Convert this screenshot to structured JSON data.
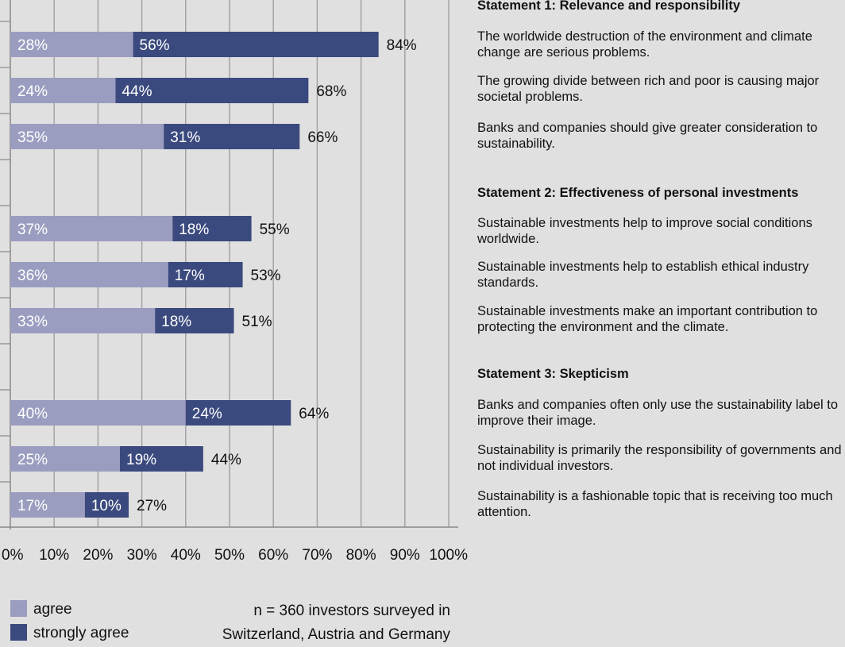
{
  "colors": {
    "agree": "#9b9dc0",
    "strongly_agree": "#3b4a7e",
    "background": "#e1e0e0",
    "gridline": "#a4a4a4",
    "axis": "#888888"
  },
  "chart_data": {
    "type": "bar",
    "orientation": "horizontal",
    "stacked": true,
    "xlim": [
      0,
      100
    ],
    "x_ticks": [
      "0%",
      "10%",
      "20%",
      "30%",
      "40%",
      "50%",
      "60%",
      "70%",
      "80%",
      "90%",
      "100%"
    ],
    "grid": "vertical",
    "series": [
      {
        "name": "agree",
        "values": [
          28,
          24,
          35,
          37,
          36,
          33,
          40,
          25,
          17
        ]
      },
      {
        "name": "strongly agree",
        "values": [
          56,
          44,
          31,
          18,
          17,
          18,
          24,
          19,
          10
        ]
      }
    ],
    "totals": [
      84,
      68,
      66,
      55,
      53,
      51,
      64,
      44,
      27
    ],
    "groups": [
      [
        0,
        1,
        2
      ],
      [
        3,
        4,
        5
      ],
      [
        6,
        7,
        8
      ]
    ],
    "legend": {
      "position": "bottom-left",
      "entries": [
        "agree",
        "strongly agree"
      ]
    }
  },
  "statements": [
    {
      "heading": "Statement 1: Relevance and responsibility",
      "items": [
        "The worldwide destruction of the environment and climate change are serious problems.",
        "The growing divide between rich and poor is causing major societal problems.",
        "Banks and companies should give greater consideration to sustainability."
      ]
    },
    {
      "heading": "Statement 2: Effectiveness of personal investments",
      "items": [
        "Sustainable investments help to improve social conditions worldwide.",
        "Sustainable investments help to establish ethical industry standards.",
        "Sustainable investments make an important contribution to protecting the environment and the climate."
      ]
    },
    {
      "heading": "Statement 3: Skepticism",
      "items": [
        "Banks and companies often only use the sustainability label to improve their image.",
        "Sustainability is primarily the responsibility of governments and not individual investors.",
        "Sustainability is a fashionable topic that is receiving too much attention."
      ]
    }
  ],
  "footnote": {
    "line1": "n = 360 investors surveyed in",
    "line2": "Switzerland, Austria and Germany"
  }
}
